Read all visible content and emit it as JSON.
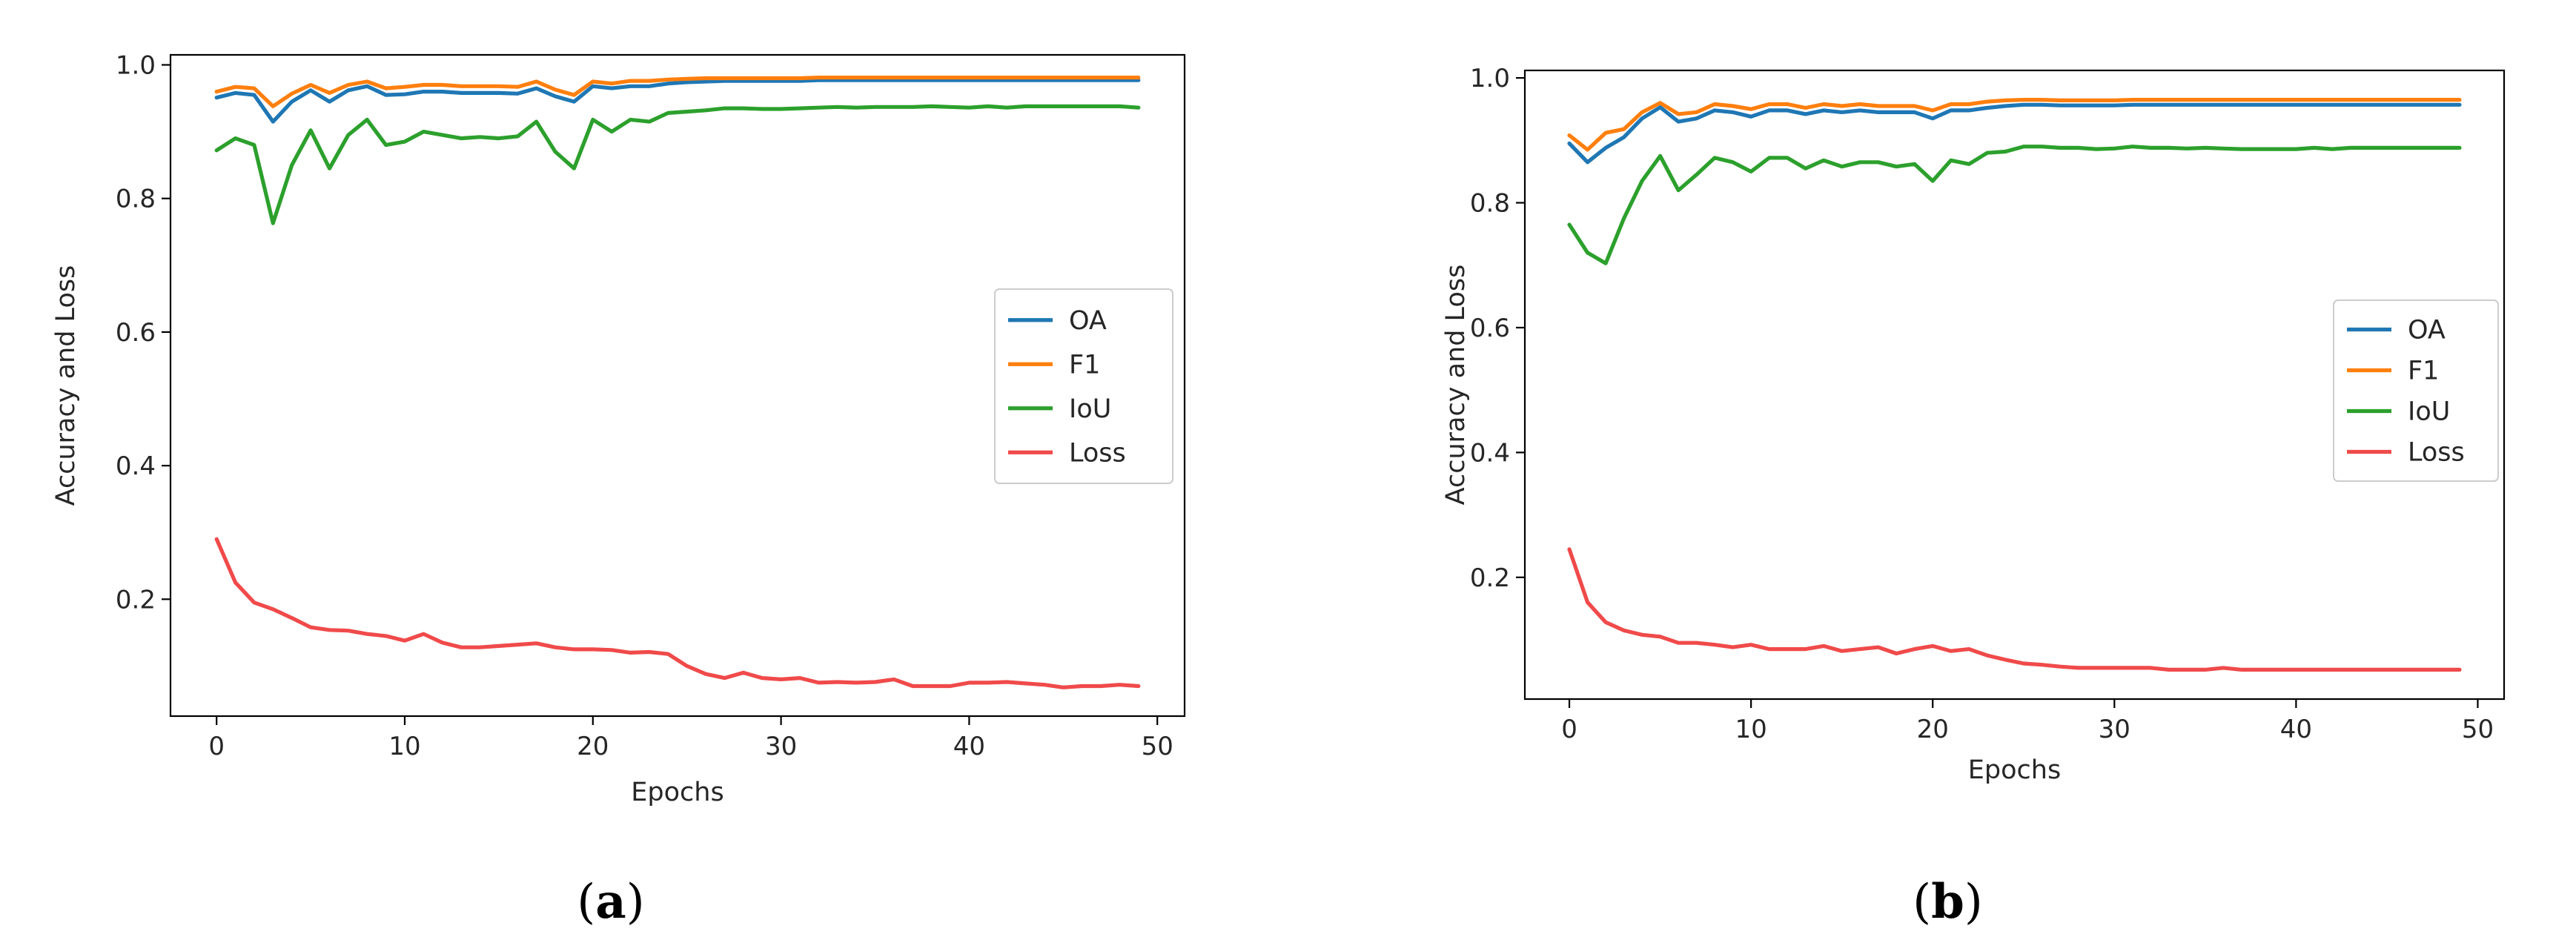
{
  "chart_data": [
    {
      "type": "line",
      "caption": "a",
      "title": "",
      "xlabel": "Epochs",
      "ylabel": "Accuracy and Loss",
      "xlim": [
        -2.45,
        51.45
      ],
      "ylim": [
        0.025,
        1.015
      ],
      "xticks": [
        0,
        10,
        20,
        30,
        40,
        50
      ],
      "yticks": [
        0.2,
        0.4,
        0.6,
        0.8,
        1.0
      ],
      "xtick_labels": [
        "0",
        "10",
        "20",
        "30",
        "40",
        "50"
      ],
      "ytick_labels": [
        "0.2",
        "0.4",
        "0.6",
        "0.8",
        "1.0"
      ],
      "legend_position": "center-right",
      "x": [
        0,
        1,
        2,
        3,
        4,
        5,
        6,
        7,
        8,
        9,
        10,
        11,
        12,
        13,
        14,
        15,
        16,
        17,
        18,
        19,
        20,
        21,
        22,
        23,
        24,
        25,
        26,
        27,
        28,
        29,
        30,
        31,
        32,
        33,
        34,
        35,
        36,
        37,
        38,
        39,
        40,
        41,
        42,
        43,
        44,
        45,
        46,
        47,
        48,
        49
      ],
      "series": [
        {
          "name": "OA",
          "color": "#1f77b4",
          "values": [
            0.951,
            0.958,
            0.955,
            0.915,
            0.945,
            0.962,
            0.945,
            0.962,
            0.968,
            0.955,
            0.956,
            0.96,
            0.96,
            0.958,
            0.958,
            0.958,
            0.957,
            0.965,
            0.953,
            0.945,
            0.968,
            0.965,
            0.968,
            0.968,
            0.972,
            0.974,
            0.975,
            0.976,
            0.976,
            0.976,
            0.976,
            0.976,
            0.977,
            0.977,
            0.977,
            0.977,
            0.977,
            0.977,
            0.977,
            0.977,
            0.977,
            0.977,
            0.977,
            0.977,
            0.977,
            0.977,
            0.977,
            0.977,
            0.977,
            0.977
          ]
        },
        {
          "name": "F1",
          "color": "#ff7f0e",
          "values": [
            0.96,
            0.967,
            0.965,
            0.938,
            0.957,
            0.97,
            0.958,
            0.97,
            0.975,
            0.965,
            0.967,
            0.97,
            0.97,
            0.968,
            0.968,
            0.968,
            0.967,
            0.975,
            0.963,
            0.955,
            0.975,
            0.972,
            0.976,
            0.976,
            0.978,
            0.979,
            0.98,
            0.98,
            0.98,
            0.98,
            0.98,
            0.98,
            0.981,
            0.981,
            0.981,
            0.981,
            0.981,
            0.981,
            0.981,
            0.981,
            0.981,
            0.981,
            0.981,
            0.981,
            0.981,
            0.981,
            0.981,
            0.981,
            0.981,
            0.981
          ]
        },
        {
          "name": "IoU",
          "color": "#2ca02c",
          "values": [
            0.872,
            0.89,
            0.88,
            0.763,
            0.85,
            0.902,
            0.845,
            0.895,
            0.918,
            0.88,
            0.885,
            0.9,
            0.895,
            0.89,
            0.892,
            0.89,
            0.893,
            0.915,
            0.87,
            0.845,
            0.918,
            0.9,
            0.918,
            0.915,
            0.928,
            0.93,
            0.932,
            0.935,
            0.935,
            0.934,
            0.934,
            0.935,
            0.936,
            0.937,
            0.936,
            0.937,
            0.937,
            0.937,
            0.938,
            0.937,
            0.936,
            0.938,
            0.936,
            0.938,
            0.938,
            0.938,
            0.938,
            0.938,
            0.938,
            0.936
          ]
        },
        {
          "name": "Loss",
          "color": "#f04a4a",
          "values": [
            0.29,
            0.225,
            0.195,
            0.185,
            0.172,
            0.158,
            0.154,
            0.153,
            0.148,
            0.145,
            0.138,
            0.148,
            0.135,
            0.128,
            0.128,
            0.13,
            0.132,
            0.134,
            0.128,
            0.125,
            0.125,
            0.124,
            0.12,
            0.121,
            0.118,
            0.1,
            0.088,
            0.082,
            0.09,
            0.082,
            0.08,
            0.082,
            0.075,
            0.076,
            0.075,
            0.076,
            0.08,
            0.07,
            0.07,
            0.07,
            0.075,
            0.075,
            0.076,
            0.074,
            0.072,
            0.068,
            0.07,
            0.07,
            0.072,
            0.07
          ]
        }
      ]
    },
    {
      "type": "line",
      "caption": "b",
      "title": "",
      "xlabel": "Epochs",
      "ylabel": "Accuracy and Loss",
      "xlim": [
        -2.45,
        51.45
      ],
      "ylim": [
        0.005,
        1.012
      ],
      "xticks": [
        0,
        10,
        20,
        30,
        40,
        50
      ],
      "yticks": [
        0.2,
        0.4,
        0.6,
        0.8,
        1.0
      ],
      "xtick_labels": [
        "0",
        "10",
        "20",
        "30",
        "40",
        "50"
      ],
      "ytick_labels": [
        "0.2",
        "0.4",
        "0.6",
        "0.8",
        "1.0"
      ],
      "legend_position": "center-right",
      "x": [
        0,
        1,
        2,
        3,
        4,
        5,
        6,
        7,
        8,
        9,
        10,
        11,
        12,
        13,
        14,
        15,
        16,
        17,
        18,
        19,
        20,
        21,
        22,
        23,
        24,
        25,
        26,
        27,
        28,
        29,
        30,
        31,
        32,
        33,
        34,
        35,
        36,
        37,
        38,
        39,
        40,
        41,
        42,
        43,
        44,
        45,
        46,
        47,
        48,
        49
      ],
      "series": [
        {
          "name": "OA",
          "color": "#1f77b4",
          "values": [
            0.895,
            0.865,
            0.888,
            0.905,
            0.935,
            0.953,
            0.93,
            0.935,
            0.948,
            0.945,
            0.938,
            0.948,
            0.948,
            0.942,
            0.948,
            0.945,
            0.948,
            0.945,
            0.945,
            0.945,
            0.935,
            0.948,
            0.948,
            0.952,
            0.955,
            0.957,
            0.957,
            0.956,
            0.956,
            0.956,
            0.956,
            0.957,
            0.957,
            0.957,
            0.957,
            0.957,
            0.957,
            0.957,
            0.957,
            0.957,
            0.957,
            0.957,
            0.957,
            0.957,
            0.957,
            0.957,
            0.957,
            0.957,
            0.957,
            0.957
          ]
        },
        {
          "name": "F1",
          "color": "#ff7f0e",
          "values": [
            0.908,
            0.885,
            0.912,
            0.918,
            0.945,
            0.96,
            0.942,
            0.945,
            0.958,
            0.955,
            0.95,
            0.958,
            0.958,
            0.952,
            0.958,
            0.955,
            0.958,
            0.955,
            0.955,
            0.955,
            0.948,
            0.958,
            0.958,
            0.962,
            0.964,
            0.965,
            0.965,
            0.964,
            0.964,
            0.964,
            0.964,
            0.965,
            0.965,
            0.965,
            0.965,
            0.965,
            0.965,
            0.965,
            0.965,
            0.965,
            0.965,
            0.965,
            0.965,
            0.965,
            0.965,
            0.965,
            0.965,
            0.965,
            0.965,
            0.965
          ]
        },
        {
          "name": "IoU",
          "color": "#2ca02c",
          "values": [
            0.765,
            0.72,
            0.703,
            0.775,
            0.835,
            0.875,
            0.82,
            0.845,
            0.872,
            0.865,
            0.85,
            0.872,
            0.872,
            0.855,
            0.868,
            0.858,
            0.865,
            0.865,
            0.858,
            0.862,
            0.835,
            0.868,
            0.862,
            0.88,
            0.882,
            0.89,
            0.89,
            0.888,
            0.888,
            0.886,
            0.887,
            0.89,
            0.888,
            0.888,
            0.887,
            0.888,
            0.887,
            0.886,
            0.886,
            0.886,
            0.886,
            0.888,
            0.886,
            0.888,
            0.888,
            0.888,
            0.888,
            0.888,
            0.888,
            0.888
          ]
        },
        {
          "name": "Loss",
          "color": "#f04a4a",
          "values": [
            0.245,
            0.16,
            0.128,
            0.115,
            0.108,
            0.105,
            0.095,
            0.095,
            0.092,
            0.088,
            0.092,
            0.085,
            0.085,
            0.085,
            0.09,
            0.082,
            0.085,
            0.088,
            0.078,
            0.085,
            0.09,
            0.082,
            0.085,
            0.075,
            0.068,
            0.062,
            0.06,
            0.057,
            0.055,
            0.055,
            0.055,
            0.055,
            0.055,
            0.052,
            0.052,
            0.052,
            0.055,
            0.052,
            0.052,
            0.052,
            0.052,
            0.052,
            0.052,
            0.052,
            0.052,
            0.052,
            0.052,
            0.052,
            0.052,
            0.052
          ]
        }
      ]
    }
  ]
}
